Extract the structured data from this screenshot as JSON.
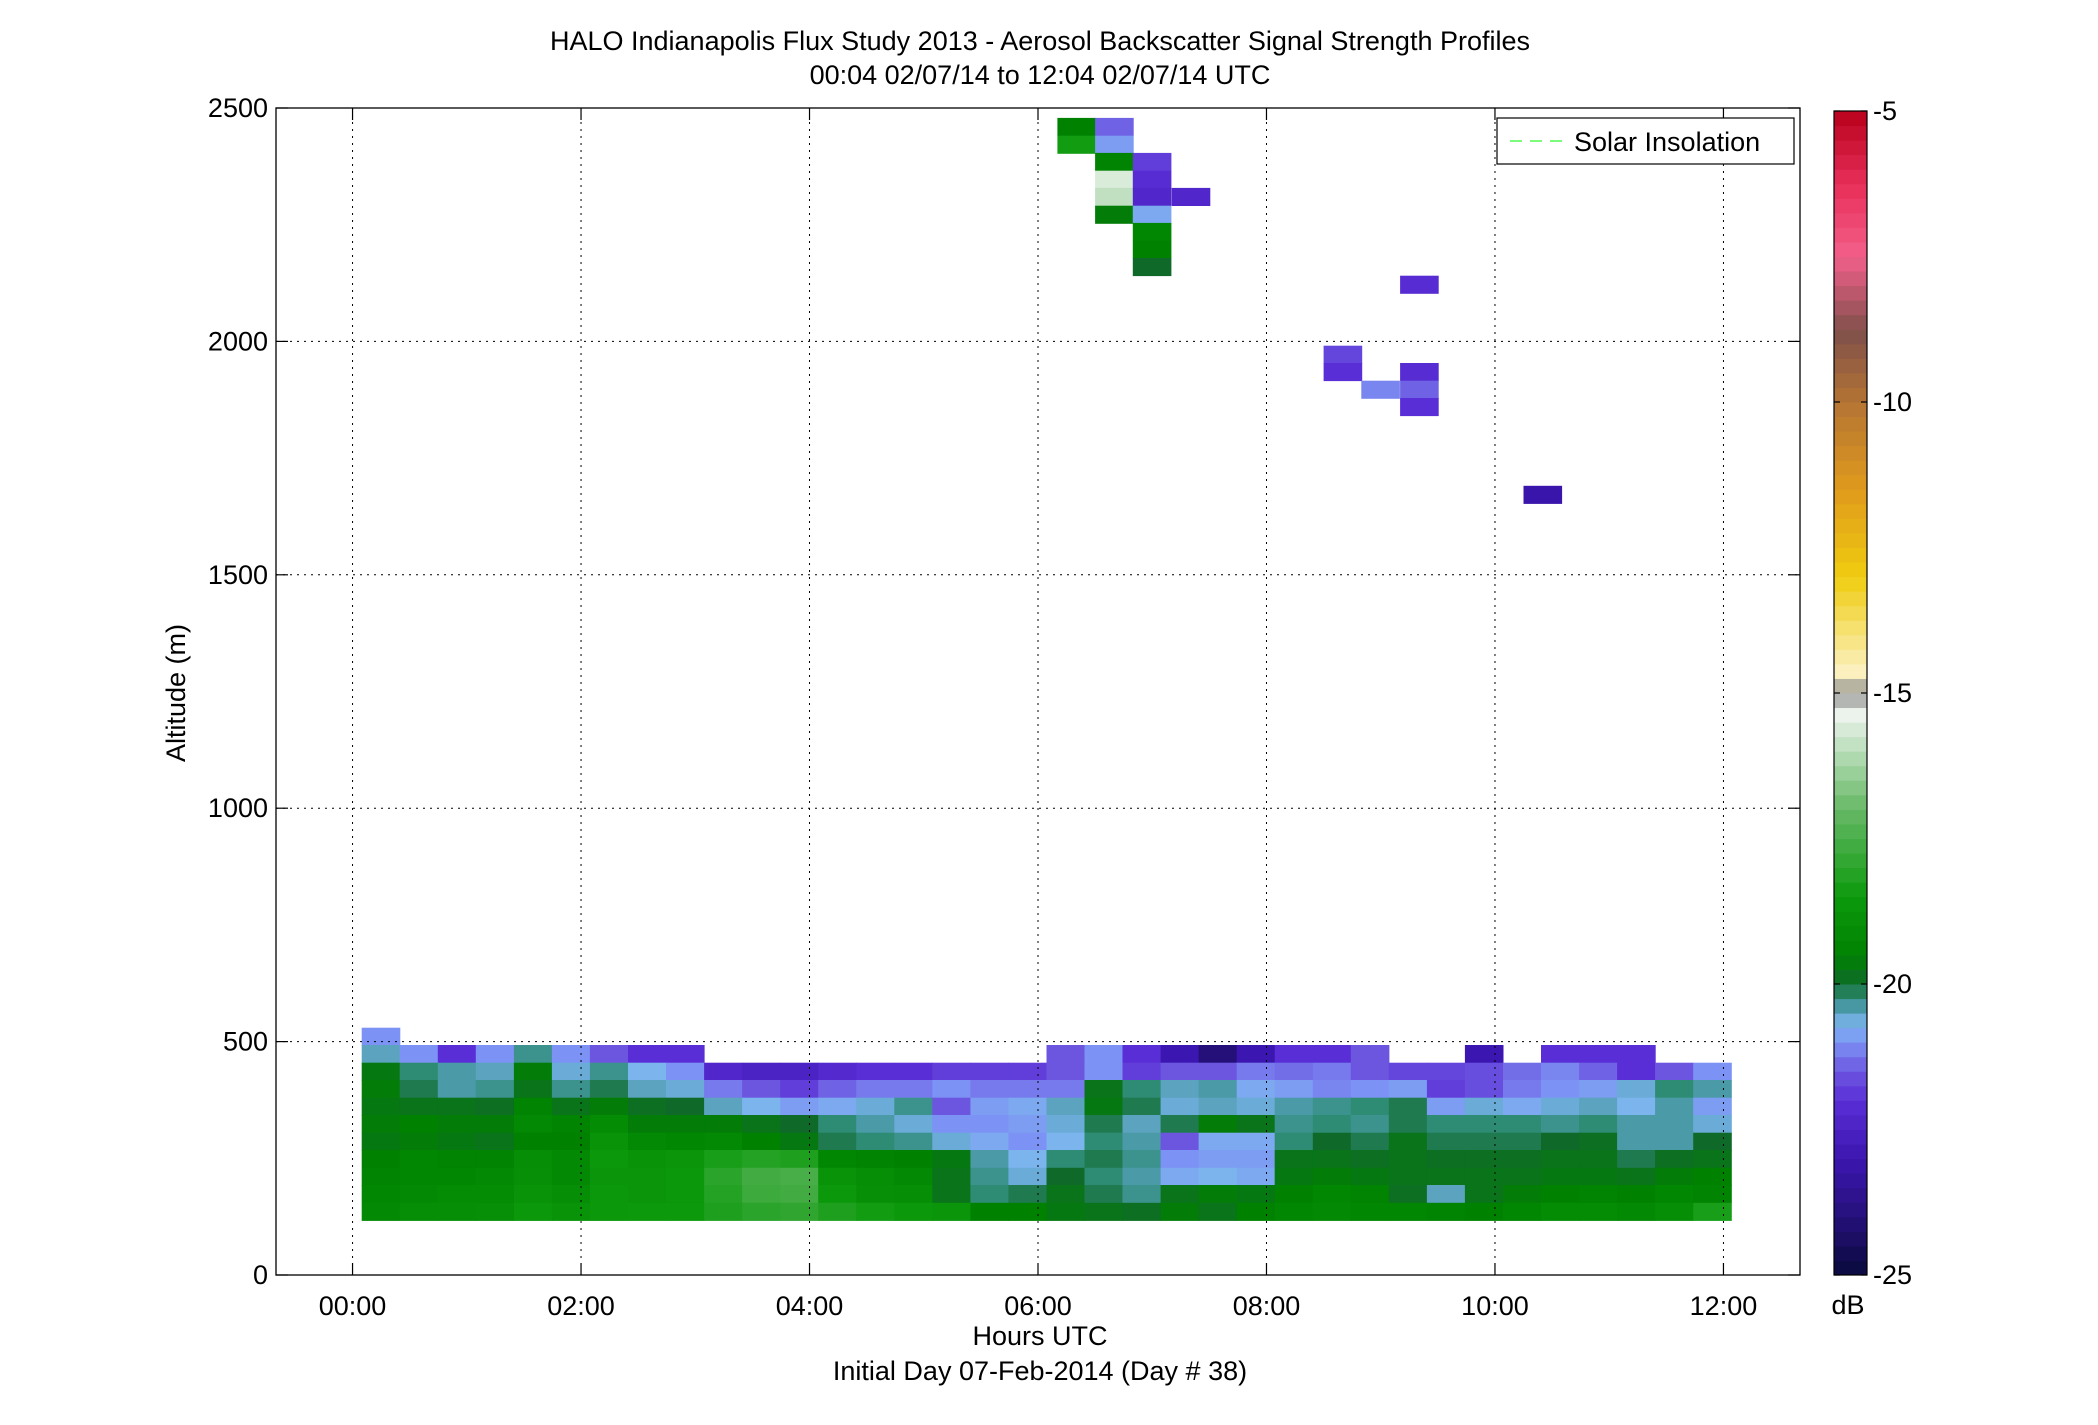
{
  "chart_data": {
    "type": "heatmap",
    "title": "HALO Indianapolis Flux Study 2013 - Aerosol Backscatter Signal Strength Profiles",
    "subtitle": "00:04 02/07/14 to 12:04 02/07/14  UTC",
    "xlabel": "Hours UTC",
    "xlabel2": "Initial Day 07-Feb-2014 (Day # 38)",
    "ylabel": "Altitude (m)",
    "x_tick_labels": [
      "00:00",
      "02:00",
      "04:00",
      "06:00",
      "08:00",
      "10:00",
      "12:00"
    ],
    "x_ticks_hours": [
      0,
      2,
      4,
      6,
      8,
      10,
      12
    ],
    "y_ticks": [
      0,
      500,
      1000,
      1500,
      2000,
      2500
    ],
    "xlim_hours": [
      -0.67,
      12.67
    ],
    "ylim": [
      0,
      2500
    ],
    "grid": true,
    "legend": {
      "label": "Solar Insolation",
      "placement": "top-right",
      "line_color": "#7CFC7C",
      "line_style": "dashed"
    },
    "colorbar": {
      "unit": "dB",
      "ticks": [
        -5,
        -10,
        -15,
        -20,
        -25
      ],
      "range": [
        -25,
        -5
      ],
      "stops": [
        {
          "v": -25.0,
          "c": "#0a0a3c"
        },
        {
          "v": -24.0,
          "c": "#25107a"
        },
        {
          "v": -23.0,
          "c": "#3c16b0"
        },
        {
          "v": -22.0,
          "c": "#5a2ed6"
        },
        {
          "v": -21.5,
          "c": "#6c56e0"
        },
        {
          "v": -21.0,
          "c": "#7c92f4"
        },
        {
          "v": -20.7,
          "c": "#7cb4ee"
        },
        {
          "v": -20.4,
          "c": "#4a9aa8"
        },
        {
          "v": -20.2,
          "c": "#2e8c74"
        },
        {
          "v": -20.0,
          "c": "#0f6a2a"
        },
        {
          "v": -19.5,
          "c": "#008200"
        },
        {
          "v": -18.5,
          "c": "#0c9a0c"
        },
        {
          "v": -17.0,
          "c": "#66b866"
        },
        {
          "v": -15.3,
          "c": "#f2f6f2"
        },
        {
          "v": -15.0,
          "c": "#888888"
        },
        {
          "v": -14.7,
          "c": "#fbf2c6"
        },
        {
          "v": -13.0,
          "c": "#f0cc10"
        },
        {
          "v": -11.5,
          "c": "#e09a1c"
        },
        {
          "v": -10.0,
          "c": "#b47434"
        },
        {
          "v": -8.8,
          "c": "#80504a"
        },
        {
          "v": -7.5,
          "c": "#f2608a"
        },
        {
          "v": -6.3,
          "c": "#e8305a"
        },
        {
          "v": -5.0,
          "c": "#b8001c"
        }
      ]
    },
    "cell_height_m": 37.5,
    "cell_width_h": 0.333,
    "row_altitudes_m": [
      80,
      117.5,
      155,
      192.5,
      230,
      267.5,
      305,
      342.5,
      380,
      417.5,
      455,
      492.5,
      530
    ],
    "low_level_grid": {
      "x_start_hours": 0.08,
      "grid_rows_top_to_bottom": [
        [
          -21,
          null,
          null,
          null,
          null,
          null,
          null,
          null,
          null,
          null,
          null,
          null,
          null,
          null,
          null,
          null,
          null,
          null,
          null,
          null,
          null,
          null,
          null,
          null,
          null,
          null,
          null,
          null,
          null,
          null,
          null,
          null,
          null,
          null,
          null,
          null
        ],
        [
          -20.5,
          -21,
          -22,
          -21,
          -20.3,
          -21,
          -21.5,
          -22,
          -22,
          null,
          null,
          null,
          null,
          null,
          null,
          null,
          null,
          null,
          -21.5,
          -21,
          -22,
          -23,
          -24,
          -23,
          -22,
          -22,
          -21.5,
          null,
          null,
          -23,
          null,
          -22,
          -22,
          -22,
          null,
          null
        ],
        [
          -19.7,
          -20.2,
          -20.4,
          -20.5,
          -19.6,
          -20.6,
          -20.3,
          -20.7,
          -21,
          -22.3,
          -22.5,
          -22.5,
          -22.2,
          -22,
          -22,
          -21.8,
          -21.8,
          -21.8,
          -21.5,
          -21,
          -21.8,
          -21.5,
          -21.5,
          -21.2,
          -21.3,
          -21.2,
          -21.5,
          -21.7,
          -21.7,
          -21.6,
          -21.3,
          -21.1,
          -21.4,
          -22,
          -21.5,
          -21
        ],
        [
          -19.6,
          -20.1,
          -20.4,
          -20.3,
          -19.8,
          -20.3,
          -20.1,
          -20.5,
          -20.6,
          -21.2,
          -21.5,
          -21.8,
          -21.4,
          -21.2,
          -21.2,
          -21,
          -21.2,
          -21.2,
          -21.2,
          -19.8,
          -20.2,
          -20.5,
          -20.4,
          -20.8,
          -20.9,
          -21.1,
          -21,
          -20.9,
          -21.8,
          -21.6,
          -21.2,
          -21.0,
          -20.9,
          -20.6,
          -20.2,
          -20.4
        ],
        [
          -19.7,
          -19.8,
          -19.8,
          -19.9,
          -19.4,
          -19.8,
          -19.6,
          -19.9,
          -20,
          -20.5,
          -20.7,
          -20.9,
          -20.8,
          -20.6,
          -20.3,
          -21.5,
          -20.9,
          -20.8,
          -20.5,
          -19.7,
          -20.1,
          -20.6,
          -20.5,
          -20.6,
          -20.4,
          -20.3,
          -20.2,
          -20.1,
          -20.9,
          -20.6,
          -20.8,
          -20.6,
          -20.5,
          -20.7,
          -20.4,
          -20.9
        ],
        [
          -19.6,
          -19.5,
          -19.6,
          -19.6,
          -19.2,
          -19.4,
          -19.1,
          -19.6,
          -19.6,
          -19.6,
          -19.8,
          -20,
          -20.2,
          -20.4,
          -20.6,
          -21,
          -21,
          -20.9,
          -20.6,
          -20.1,
          -20.5,
          -20.1,
          -19.6,
          -19.8,
          -20.3,
          -20.2,
          -20.3,
          -20.1,
          -20.2,
          -20.2,
          -20.2,
          -20.3,
          -20.2,
          -20.4,
          -20.4,
          -20.6
        ],
        [
          -19.7,
          -19.6,
          -19.7,
          -19.8,
          -19.5,
          -19.5,
          -18.8,
          -19.2,
          -19.3,
          -19.2,
          -19.5,
          -19.7,
          -20.1,
          -20.2,
          -20.3,
          -20.6,
          -20.8,
          -21,
          -20.7,
          -20.2,
          -20.4,
          -21.5,
          -20.8,
          -20.8,
          -20.2,
          -20,
          -20.1,
          -19.8,
          -20.1,
          -20.1,
          -20.1,
          -20.0,
          -19.9,
          -20.4,
          -20.4,
          -20
        ],
        [
          -19.5,
          -19.3,
          -19.4,
          -19.4,
          -19,
          -19.2,
          -18.6,
          -18.8,
          -18.7,
          -18.3,
          -18.1,
          -18.2,
          -19.3,
          -19.4,
          -19.5,
          -19.7,
          -20.4,
          -20.7,
          -20.2,
          -20.1,
          -20.3,
          -21.0,
          -20.9,
          -20.9,
          -19.8,
          -19.8,
          -19.9,
          -19.8,
          -19.9,
          -19.9,
          -19.9,
          -19.8,
          -19.8,
          -20.1,
          -19.9,
          -19.8
        ],
        [
          -19.4,
          -19.3,
          -19.3,
          -19.2,
          -18.9,
          -19.2,
          -18.7,
          -18.7,
          -18.6,
          -18,
          -17.6,
          -17.5,
          -18.8,
          -19.0,
          -19.2,
          -19.8,
          -20.3,
          -20.6,
          -20.0,
          -20.2,
          -20.4,
          -20.8,
          -20.7,
          -20.8,
          -19.7,
          -19.6,
          -19.7,
          -19.8,
          -19.8,
          -19.8,
          -19.8,
          -19.7,
          -19.7,
          -19.8,
          -19.6,
          -19.5
        ],
        [
          -19.3,
          -19.2,
          -19.1,
          -19.1,
          -18.8,
          -19.0,
          -18.6,
          -18.7,
          -18.6,
          -18.1,
          -17.7,
          -17.6,
          -18.6,
          -18.9,
          -19.0,
          -19.8,
          -20.2,
          -20.1,
          -19.8,
          -20.1,
          -20.3,
          -19.8,
          -19.6,
          -19.7,
          -19.5,
          -19.3,
          -19.4,
          -19.9,
          -20.5,
          -19.8,
          -19.6,
          -19.5,
          -19.4,
          -19.5,
          -19.3,
          -19.4
        ],
        [
          -19.2,
          -19.0,
          -19.0,
          -18.9,
          -18.6,
          -18.8,
          -18.6,
          -18.5,
          -18.5,
          -18.2,
          -18.0,
          -17.9,
          -18.2,
          -18.4,
          -18.6,
          -18.7,
          -19.5,
          -19.5,
          -19.7,
          -19.8,
          -19.9,
          -19.6,
          -19.8,
          -19.5,
          -19.3,
          -19.2,
          -19.3,
          -19.3,
          -19.4,
          -19.5,
          -19.3,
          -19.1,
          -19.1,
          -19.2,
          -19.0,
          -18.3
        ]
      ],
      "grid_row_altitudes_m_top_to_bottom": [
        511,
        474,
        436,
        399,
        361,
        324,
        286,
        249,
        211,
        174,
        136
      ]
    },
    "elevated_cells": [
      {
        "t": 6.17,
        "alt": 2460,
        "v": -19.5
      },
      {
        "t": 6.17,
        "alt": 2422,
        "v": -18.4
      },
      {
        "t": 6.5,
        "alt": 2460,
        "v": -21.4
      },
      {
        "t": 6.5,
        "alt": 2422,
        "v": -20.9
      },
      {
        "t": 6.5,
        "alt": 2385,
        "v": -19.4
      },
      {
        "t": 6.5,
        "alt": 2347,
        "v": -15.6
      },
      {
        "t": 6.5,
        "alt": 2310,
        "v": -15.9
      },
      {
        "t": 6.5,
        "alt": 2272,
        "v": -19.6
      },
      {
        "t": 6.83,
        "alt": 2385,
        "v": -21.8
      },
      {
        "t": 6.83,
        "alt": 2347,
        "v": -22.1
      },
      {
        "t": 6.83,
        "alt": 2310,
        "v": -22.3
      },
      {
        "t": 6.83,
        "alt": 2272,
        "v": -20.8
      },
      {
        "t": 6.83,
        "alt": 2235,
        "v": -19.3
      },
      {
        "t": 6.83,
        "alt": 2197,
        "v": -19.5
      },
      {
        "t": 6.83,
        "alt": 2160,
        "v": -20.0
      },
      {
        "t": 7.17,
        "alt": 2310,
        "v": -22.3
      },
      {
        "t": 9.17,
        "alt": 2122,
        "v": -22.1
      },
      {
        "t": 8.5,
        "alt": 1972,
        "v": -21.7
      },
      {
        "t": 8.5,
        "alt": 1935,
        "v": -22.0
      },
      {
        "t": 8.83,
        "alt": 1897,
        "v": -21.1
      },
      {
        "t": 9.17,
        "alt": 1935,
        "v": -22.1
      },
      {
        "t": 9.17,
        "alt": 1897,
        "v": -21.4
      },
      {
        "t": 9.17,
        "alt": 1860,
        "v": -22.0
      },
      {
        "t": 10.25,
        "alt": 1672,
        "v": -23.1
      }
    ]
  }
}
